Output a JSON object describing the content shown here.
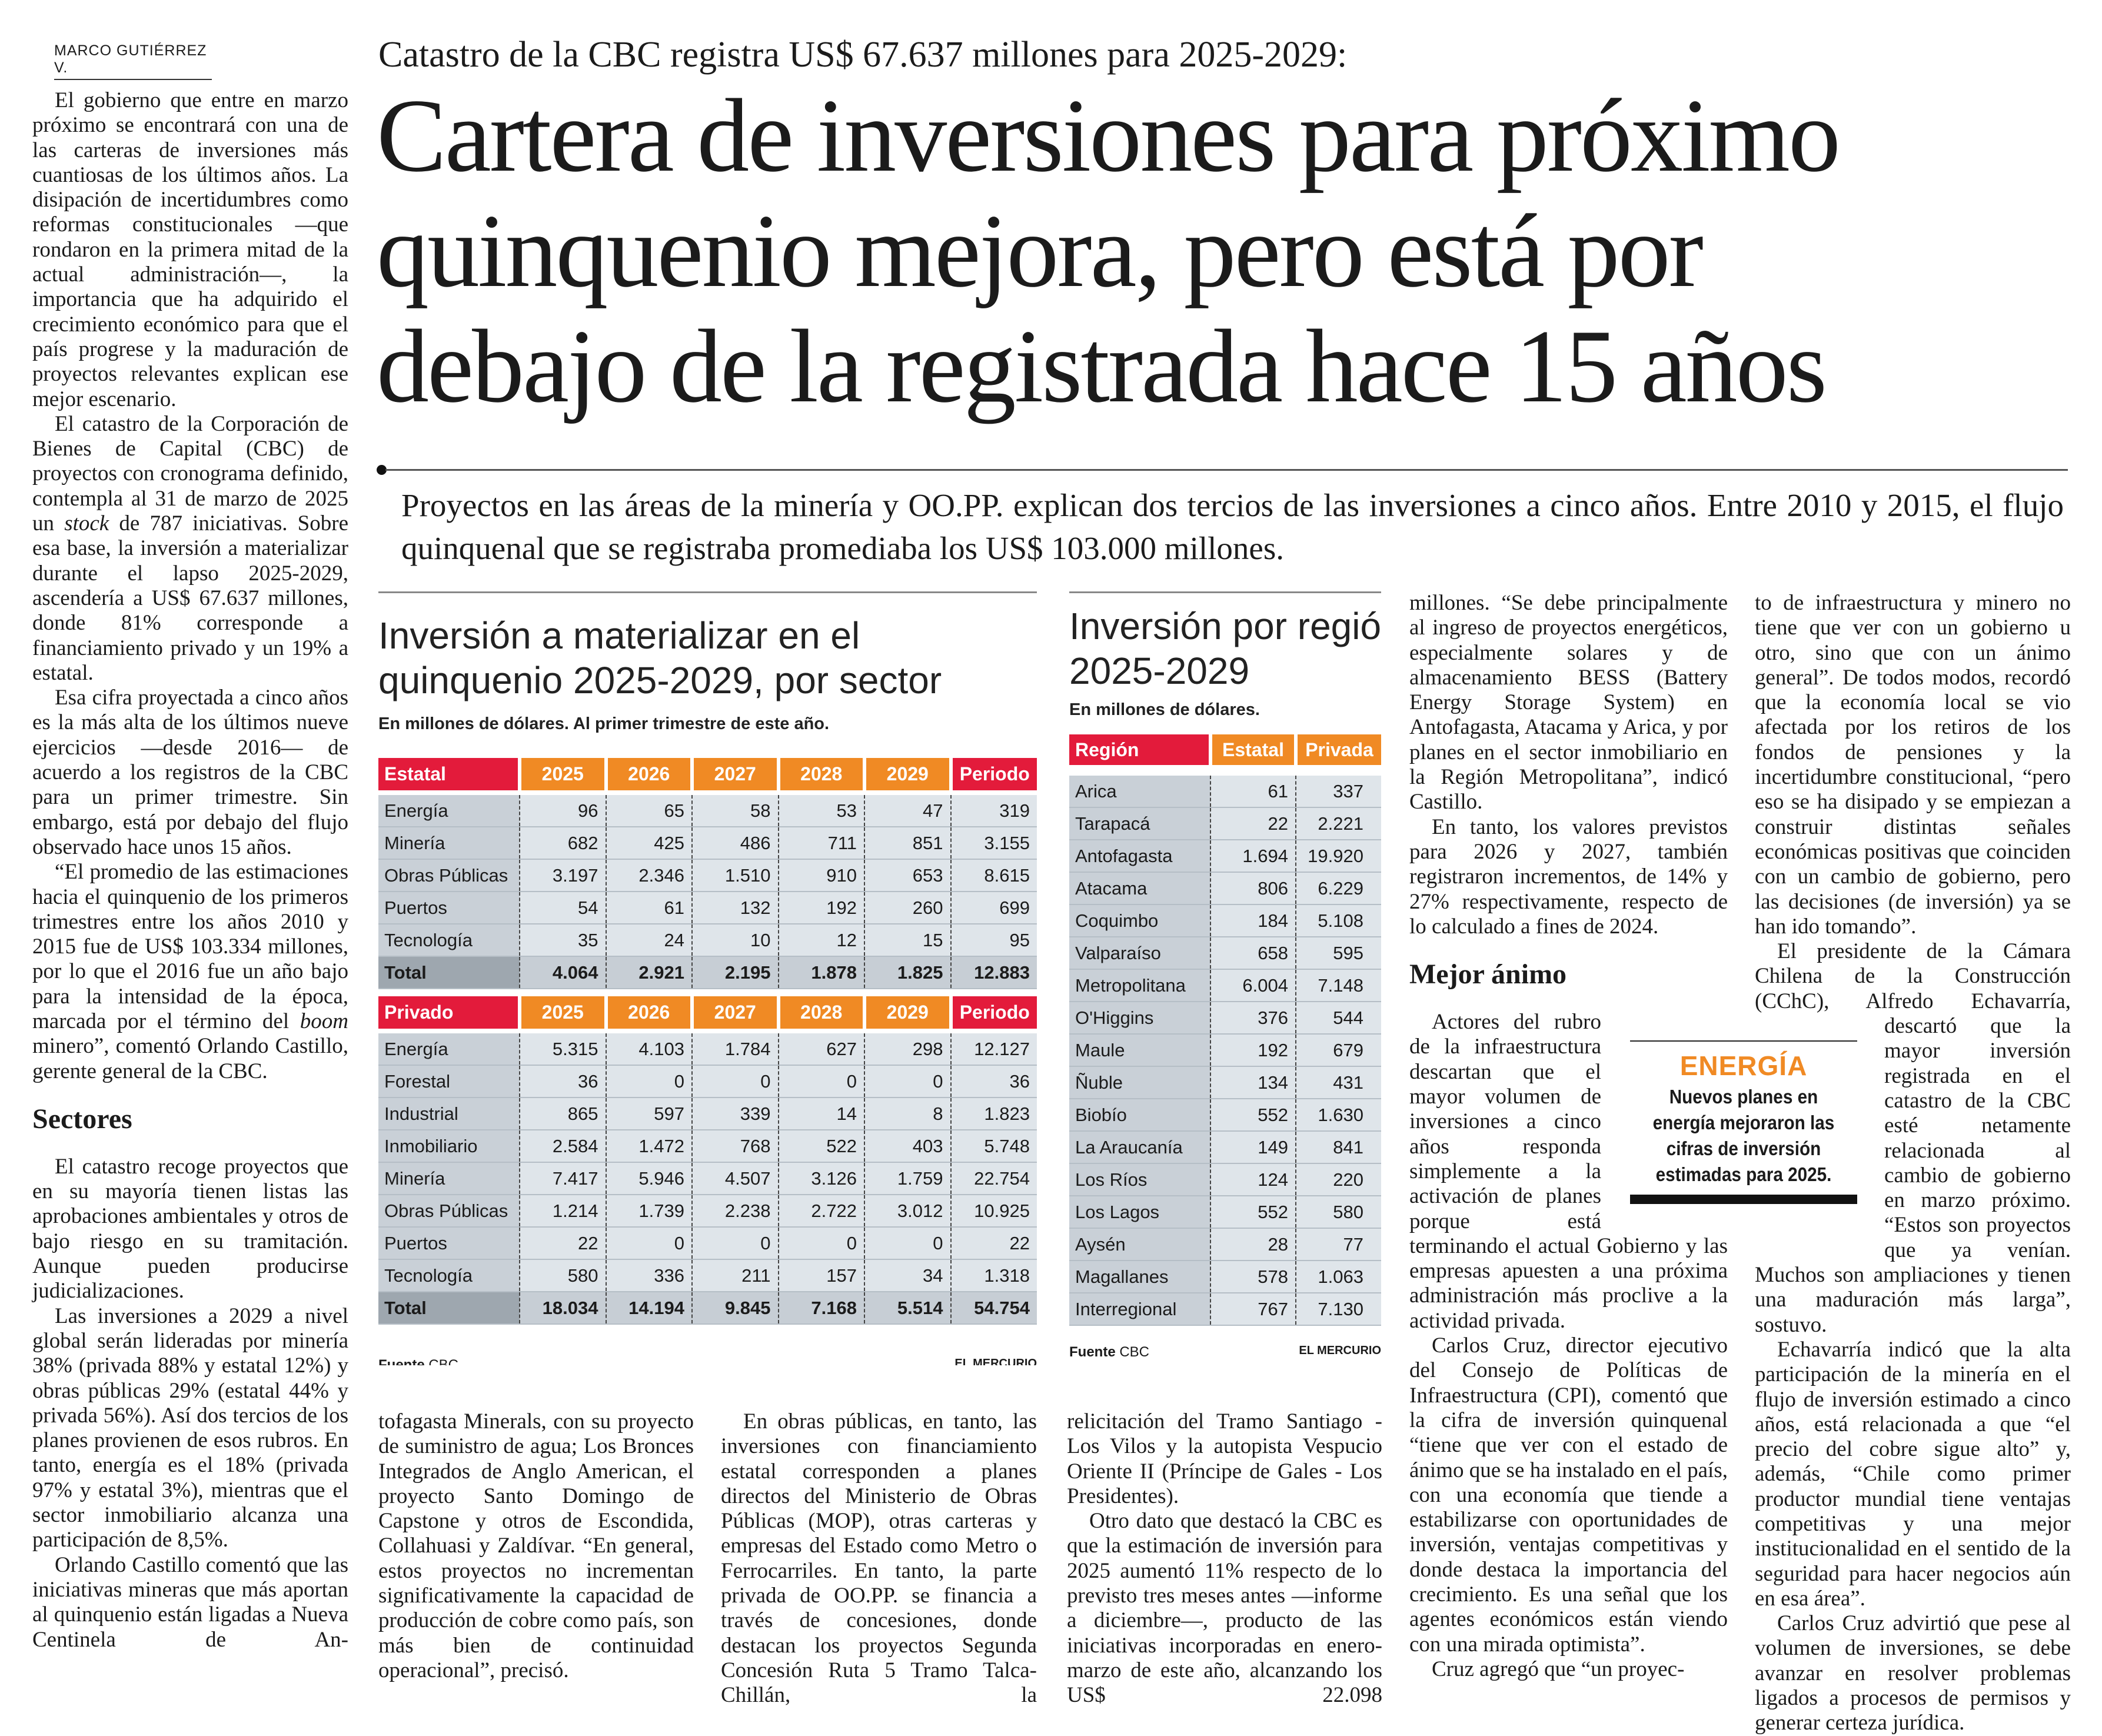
{
  "byline": "MARCO GUTIÉRREZ V.",
  "deck": "Catastro de la CBC registra US$ 67.637 millones para 2025-2029:",
  "headline": [
    "Cartera de inversiones para próximo",
    "quinquenio mejora, pero está por",
    "debajo de la registrada hace 15 años"
  ],
  "lead": "Proyectos en las áreas de la minería y OO.PP. explican dos tercios de las inversiones a cinco años. Entre 2010 y 2015, el flujo quinquenal que se registraba promediaba los US$ 103.000 millones.",
  "left_column": {
    "p1": "El gobierno que entre en marzo próximo se encontrará con una de las carteras de inversiones más cuantiosas de los últimos años. La disipación de incertidumbres como reformas constitucionales —que rondaron en la primera mitad de la actual administración—, la importancia que ha adquirido el crecimiento económico para que el país progrese y la maduración de proyectos relevantes explican ese mejor escenario.",
    "p2_a": "El catastro de la Corporación de Bienes de Capital (CBC) de proyectos con cronograma definido, contempla al 31 de marzo de 2025 un ",
    "p2_italic": "stock",
    "p2_b": " de 787 iniciativas. Sobre esa base, la inversión a materializar durante el lapso 2025-2029, ascendería a US$ 67.637 millones, donde 81% corresponde a financiamiento privado y un 19% a estatal.",
    "p3": "Esa cifra proyectada a cinco años es la más alta de los últimos nueve ejercicios —desde 2016— de acuerdo a los registros de la CBC para un primer trimestre. Sin embargo, está por debajo del flujo observado hace unos 15 años.",
    "p4_a": "“El promedio de las estimaciones hacia el quinquenio de los primeros trimestres entre los años 2010 y 2015 fue de US$ 103.334 millones, por lo que el 2016 fue un año bajo para la intensidad de la época, marcada por el término del ",
    "p4_italic": "boom",
    "p4_b": " minero”, comentó Orlando Castillo, gerente general de la CBC.",
    "heading": "Sectores",
    "p5": "El catastro recoge proyectos que en su mayoría tienen listas las aprobaciones ambientales y otros de bajo riesgo en su tramitación. Aunque pueden producirse judicializaciones.",
    "p6": "Las inversiones a 2029 a nivel global serán lideradas por minería 38% (privada 88% y estatal 12%) y obras públicas 29% (estatal 44% y privada 56%). Así dos tercios de los planes provienen de esos rubros. En tanto, energía es el 18% (privada 97% y estatal 3%), mientras que el sector inmobiliario alcanza una participación de 8,5%.",
    "p7": "Orlando Castillo comentó que las iniciativas mineras que más aportan al quinquenio están ligadas a Nueva Centinela de An-"
  },
  "sector_table": {
    "title": [
      "Inversión a materializar en el",
      "quinquenio 2025-2029, por sector"
    ],
    "subtitle": "En millones de dólares. Al primer trimestre de este año.",
    "years": [
      "2025",
      "2026",
      "2027",
      "2028",
      "2029"
    ],
    "period_label": "Periodo",
    "estatal": {
      "label": "Estatal",
      "rows": [
        {
          "sector": "Energía",
          "values": [
            "96",
            "65",
            "58",
            "53",
            "47",
            "319"
          ]
        },
        {
          "sector": "Minería",
          "values": [
            "682",
            "425",
            "486",
            "711",
            "851",
            "3.155"
          ]
        },
        {
          "sector": "Obras Públicas",
          "values": [
            "3.197",
            "2.346",
            "1.510",
            "910",
            "653",
            "8.615"
          ]
        },
        {
          "sector": "Puertos",
          "values": [
            "54",
            "61",
            "132",
            "192",
            "260",
            "699"
          ]
        },
        {
          "sector": "Tecnología",
          "values": [
            "35",
            "24",
            "10",
            "12",
            "15",
            "95"
          ]
        }
      ],
      "total": {
        "sector": "Total",
        "values": [
          "4.064",
          "2.921",
          "2.195",
          "1.878",
          "1.825",
          "12.883"
        ]
      }
    },
    "privado": {
      "label": "Privado",
      "rows": [
        {
          "sector": "Energía",
          "values": [
            "5.315",
            "4.103",
            "1.784",
            "627",
            "298",
            "12.127"
          ]
        },
        {
          "sector": "Forestal",
          "values": [
            "36",
            "0",
            "0",
            "0",
            "0",
            "36"
          ]
        },
        {
          "sector": "Industrial",
          "values": [
            "865",
            "597",
            "339",
            "14",
            "8",
            "1.823"
          ]
        },
        {
          "sector": "Inmobiliario",
          "values": [
            "2.584",
            "1.472",
            "768",
            "522",
            "403",
            "5.748"
          ]
        },
        {
          "sector": "Minería",
          "values": [
            "7.417",
            "5.946",
            "4.507",
            "3.126",
            "1.759",
            "22.754"
          ]
        },
        {
          "sector": "Obras Públicas",
          "values": [
            "1.214",
            "1.739",
            "2.238",
            "2.722",
            "3.012",
            "10.925"
          ]
        },
        {
          "sector": "Puertos",
          "values": [
            "22",
            "0",
            "0",
            "0",
            "0",
            "22"
          ]
        },
        {
          "sector": "Tecnología",
          "values": [
            "580",
            "336",
            "211",
            "157",
            "34",
            "1.318"
          ]
        }
      ],
      "total": {
        "sector": "Total",
        "values": [
          "18.034",
          "14.194",
          "9.845",
          "7.168",
          "5.514",
          "54.754"
        ]
      }
    },
    "source_label": "Fuente",
    "source": "CBC",
    "credit": "EL MERCURIO"
  },
  "region_table": {
    "title": [
      "Inversión por región",
      "2025-2029"
    ],
    "subtitle": "En millones de dólares.",
    "headers": [
      "Región",
      "Estatal",
      "Privada"
    ],
    "rows": [
      [
        "Arica",
        "61",
        "337"
      ],
      [
        "Tarapacá",
        "22",
        "2.221"
      ],
      [
        "Antofagasta",
        "1.694",
        "19.920"
      ],
      [
        "Atacama",
        "806",
        "6.229"
      ],
      [
        "Coquimbo",
        "184",
        "5.108"
      ],
      [
        "Valparaíso",
        "658",
        "595"
      ],
      [
        "Metropolitana",
        "6.004",
        "7.148"
      ],
      [
        "O'Higgins",
        "376",
        "544"
      ],
      [
        "Maule",
        "192",
        "679"
      ],
      [
        "Ñuble",
        "134",
        "431"
      ],
      [
        "Biobío",
        "552",
        "1.630"
      ],
      [
        "La Araucanía",
        "149",
        "841"
      ],
      [
        "Los Ríos",
        "124",
        "220"
      ],
      [
        "Los Lagos",
        "552",
        "580"
      ],
      [
        "Aysén",
        "28",
        "77"
      ],
      [
        "Magallanes",
        "578",
        "1.063"
      ],
      [
        "Interregional",
        "767",
        "7.130"
      ]
    ],
    "source_label": "Fuente",
    "source": "CBC",
    "credit": "EL MERCURIO"
  },
  "bottom_columns": {
    "a": "tofagasta Minerals, con su proyecto de suministro de agua; Los Bronces Integrados de Anglo American, el proyecto Santo Domingo de Capstone y otros de Escondida, Collahuasi y Zaldívar. “En general, estos proyectos no incrementan significativamente la capacidad de producción de cobre como país, son más bien de continuidad operacional”, precisó.",
    "b": "En obras públicas, en tanto, las inversiones con financiamiento estatal corresponden a planes directos del Ministerio de Obras Públicas (MOP), otras carteras y empresas del Estado como Metro o Ferrocarriles. En tanto, la parte privada de OO.PP. se financia a través de concesiones, donde destacan los proyectos Segunda Concesión Ruta 5 Tramo Talca-Chillán, la",
    "c1": "relicitación del Tramo Santiago - Los Vilos y la autopista Vespucio Oriente II (Príncipe de Gales - Los Presidentes).",
    "c2": "Otro dato que destacó la CBC es que la estimación de inversión para 2025 aumentó 11% respecto de lo previsto tres meses antes —informe a diciembre—, producto de las iniciativas incorporadas en enero-marzo de este año, alcanzando los US$ 22.098"
  },
  "column_3": {
    "p1": "millones. “Se debe principalmente al ingreso de proyectos energéticos, especialmente solares y de almacenamiento BESS (Battery Energy Storage System) en Antofagasta, Atacama y Arica, y por planes en el sector inmobiliario en la Región Metropolitana”, indicó Castillo.",
    "p2": "En tanto, los valores previstos para 2026 y 2027, también registraron incrementos, de 14% y 27% respectivamente, respecto de lo calculado a fines de 2024.",
    "heading": "Mejor ánimo",
    "p3": "Actores del rubro de la infraestructura descartan que el mayor volumen de inversiones a cinco años responda simplemente a la activación de planes porque está terminando el actual Gobierno y las empresas apuesten a una próxima administración más proclive a la actividad privada.",
    "p4": "Carlos Cruz, director ejecutivo del Consejo de Políticas de Infraestructura (CPI), comentó que la cifra de inversión quinquenal “tiene que ver con el estado de ánimo que se ha instalado en el país, con una economía que tiende a estabilizarse con oportunidades de inversión, ventajas competitivas y donde destaca la importancia del crecimiento. Es una señal que los agentes económicos están viendo con una mirada optimista”.",
    "p5": "Cruz agregó que “un proyec-"
  },
  "column_4": {
    "p1": "to de infraestructura y minero no tiene que ver con un gobierno u otro, sino que con un ánimo general”. De todos modos, recordó que la economía local se vio afectada por los retiros de los fondos de pensiones y la incertidumbre constitucional, “pero eso se ha disipado y se empiezan a construir distintas señales económicas positivas que coinciden con un cambio de gobierno, pero las decisiones (de inversión) ya se han ido tomando”.",
    "p2": "El presidente de la Cámara Chilena de la Construcción (CChC), Alfredo Echavarría, descartó que la mayor inversión registrada en el catastro de la CBC esté netamente relacionada al cambio de gobierno en marzo próximo. “Estos son proyectos que ya venían. Muchos son ampliaciones y tienen una maduración más larga”, sostuvo.",
    "p3": "Echavarría indicó que la alta participación de la minería en el flujo de inversión estimado a cinco años, está relacionada a que “el precio del cobre sigue alto” y, además, “Chile como primer productor mundial tiene ventajas competitivas y una mejor institucionalidad en el sentido de la seguridad para hacer negocios aún en esa área”.",
    "p4": "Carlos Cruz advirtió que pese al volumen de inversiones, se debe avanzar en resolver problemas ligados a procesos de permisos y generar certeza jurídica."
  },
  "callout": {
    "kicker": "ENERGÍA",
    "text": "Nuevos planes en energía mejoraron las cifras de inversión estimadas para 2025."
  },
  "colors": {
    "red": "#e31b3b",
    "orange": "#f08a24"
  }
}
